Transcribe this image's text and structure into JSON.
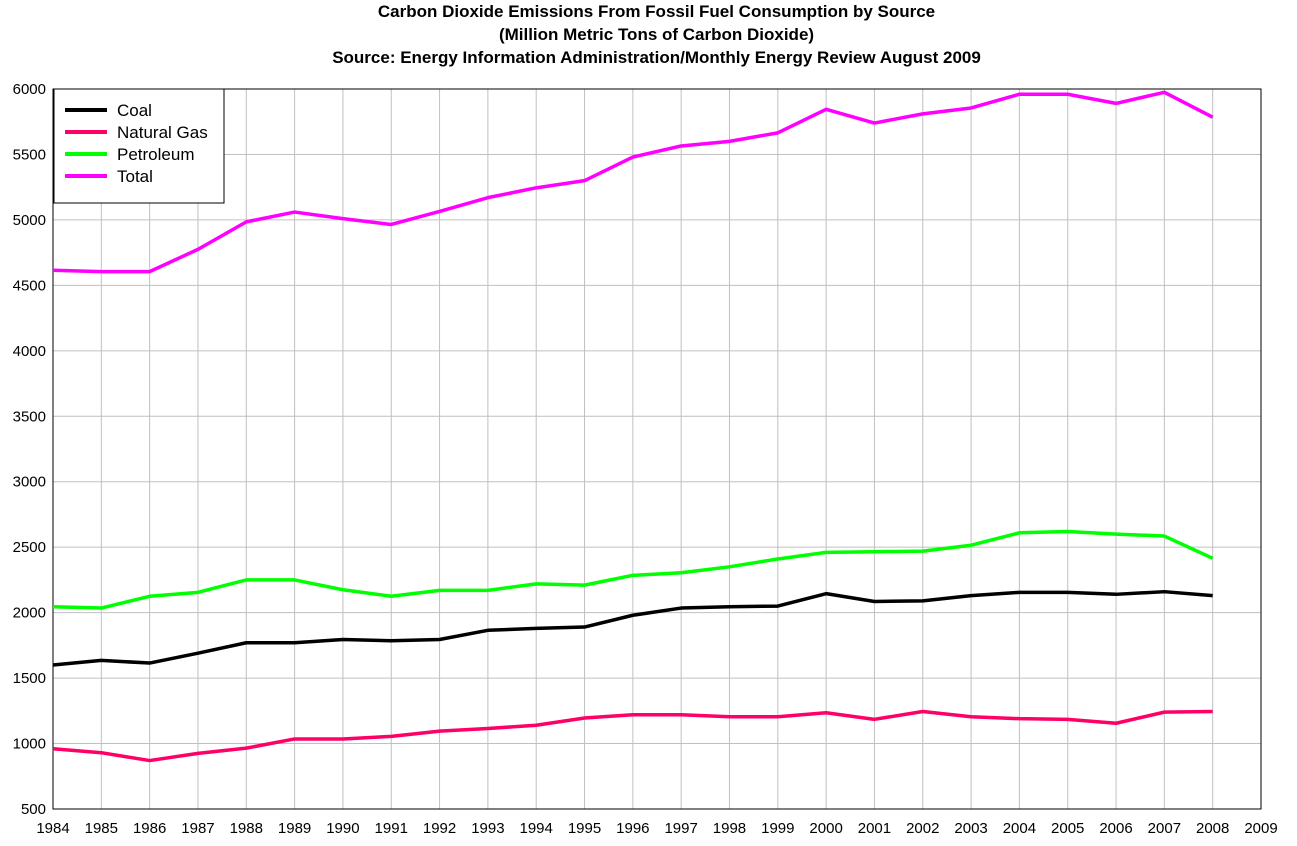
{
  "chart_data": {
    "type": "line",
    "title": "Carbon Dioxide Emissions From Fossil Fuel Consumption by Source",
    "subtitle": "(Million Metric Tons of Carbon Dioxide)",
    "source": "Source: Energy Information Administration/Monthly Energy Review August 2009",
    "x": [
      1984,
      1985,
      1986,
      1987,
      1988,
      1989,
      1990,
      1991,
      1992,
      1993,
      1994,
      1995,
      1996,
      1997,
      1998,
      1999,
      2000,
      2001,
      2002,
      2003,
      2004,
      2005,
      2006,
      2007,
      2008
    ],
    "xlim": [
      1984,
      2009
    ],
    "ylim": [
      500,
      6000
    ],
    "x_ticks": [
      "1984",
      "1985",
      "1986",
      "1987",
      "1988",
      "1989",
      "1990",
      "1991",
      "1992",
      "1993",
      "1994",
      "1995",
      "1996",
      "1997",
      "1998",
      "1999",
      "2000",
      "2001",
      "2002",
      "2003",
      "2004",
      "2005",
      "2006",
      "2007",
      "2008",
      "2009"
    ],
    "y_ticks": [
      "500",
      "1000",
      "1500",
      "2000",
      "2500",
      "3000",
      "3500",
      "4000",
      "4500",
      "5000",
      "5500",
      "6000"
    ],
    "grid": true,
    "legend_position": "top-left",
    "series": [
      {
        "name": "Coal",
        "color": "#000000",
        "values": [
          1600,
          1635,
          1615,
          1690,
          1770,
          1770,
          1795,
          1785,
          1795,
          1865,
          1880,
          1890,
          1980,
          2035,
          2045,
          2050,
          2145,
          2085,
          2090,
          2130,
          2155,
          2155,
          2140,
          2160,
          2130
        ]
      },
      {
        "name": "Natural Gas",
        "color": "#ff0066",
        "values": [
          960,
          930,
          870,
          925,
          965,
          1035,
          1035,
          1055,
          1095,
          1115,
          1140,
          1195,
          1220,
          1220,
          1205,
          1205,
          1235,
          1185,
          1245,
          1205,
          1190,
          1185,
          1155,
          1240,
          1245
        ]
      },
      {
        "name": "Petroleum",
        "color": "#00ff00",
        "values": [
          2045,
          2035,
          2125,
          2155,
          2250,
          2250,
          2175,
          2125,
          2170,
          2170,
          2220,
          2210,
          2285,
          2305,
          2350,
          2410,
          2460,
          2465,
          2470,
          2515,
          2610,
          2620,
          2600,
          2585,
          2415
        ]
      },
      {
        "name": "Total",
        "color": "#ff00ff",
        "values": [
          4615,
          4605,
          4605,
          4775,
          4985,
          5060,
          5010,
          4965,
          5065,
          5170,
          5245,
          5300,
          5480,
          5565,
          5600,
          5665,
          5845,
          5740,
          5810,
          5855,
          5960,
          5960,
          5890,
          5975,
          5785
        ]
      }
    ]
  }
}
